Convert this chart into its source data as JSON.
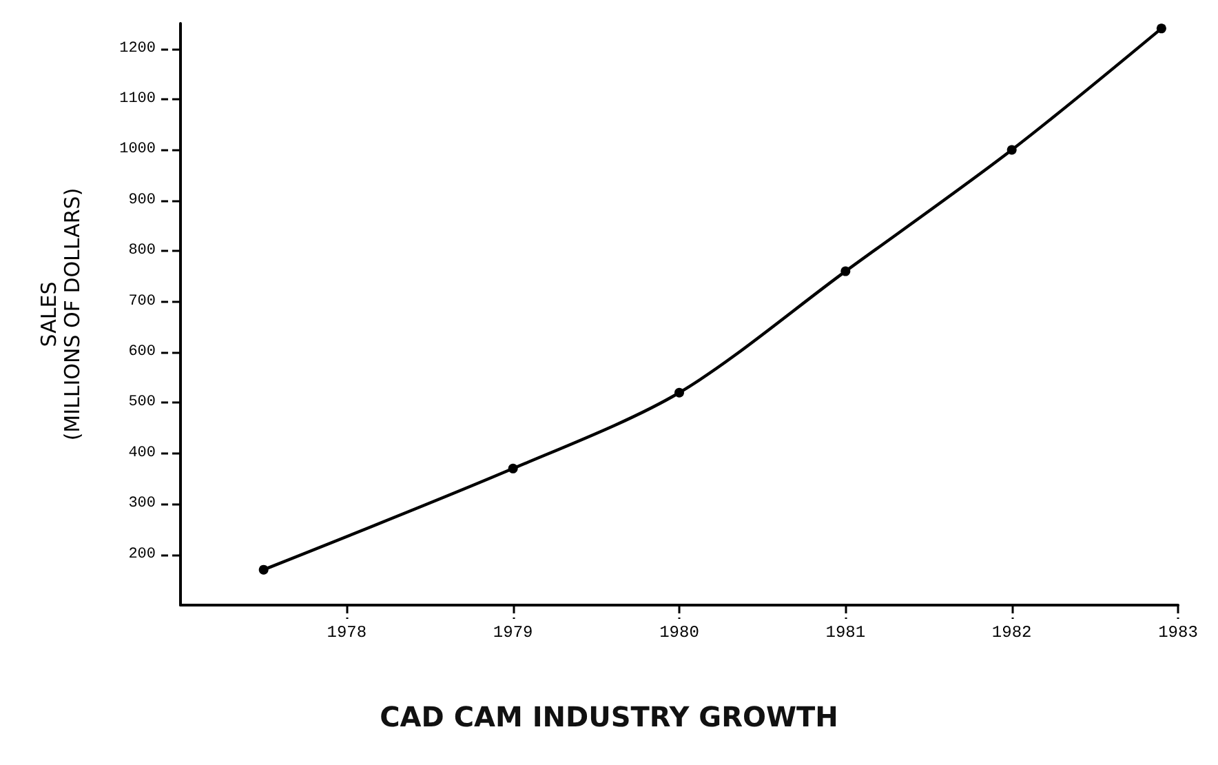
{
  "chart_data": {
    "type": "line",
    "title": "CAD CAM INDUSTRY GROWTH",
    "ylabel": "SALES\n(MILLIONS OF DOLLARS)",
    "x": [
      1977.5,
      1979,
      1980,
      1981,
      1982,
      1982.9
    ],
    "series": [
      {
        "color": "#000000",
        "values": [
          170,
          370,
          520,
          760,
          1000,
          1240
        ]
      }
    ],
    "xlim": [
      1977,
      1983
    ],
    "xticks": [
      1978,
      1979,
      1980,
      1981,
      1982,
      1983
    ],
    "ylim": [
      100,
      1250
    ],
    "yticks": [
      200,
      300,
      400,
      500,
      600,
      700,
      800,
      900,
      1000,
      1100,
      1200
    ],
    "grid": false,
    "marker": "circle",
    "line_style": "solid"
  }
}
